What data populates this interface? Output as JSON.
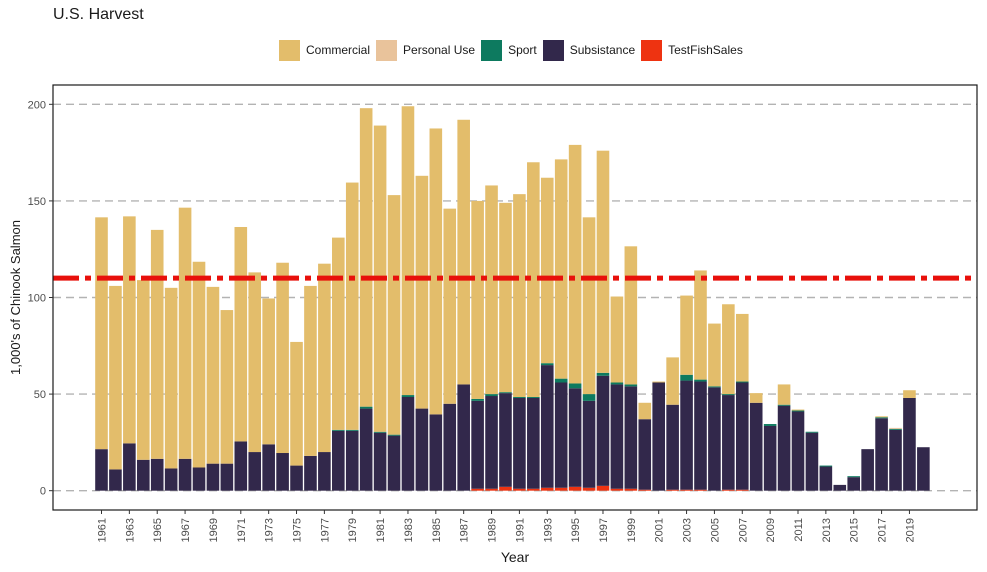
{
  "chart_data": {
    "type": "bar",
    "stacked": true,
    "title": "U.S. Harvest",
    "xlabel": "Year",
    "ylabel": "1,000's of Chinook Salmon",
    "ylim": [
      -10,
      210
    ],
    "y_ticks": [
      0,
      50,
      100,
      150,
      200
    ],
    "grid": "horizontal dashed",
    "legend_position": "top",
    "x_tick_labels": [
      "1961",
      "1963",
      "1965",
      "1967",
      "1969",
      "1971",
      "1973",
      "1975",
      "1977",
      "1979",
      "1981",
      "1983",
      "1985",
      "1987",
      "1989",
      "1991",
      "1993",
      "1995",
      "1997",
      "1999",
      "2001",
      "2003",
      "2005",
      "2007",
      "2009",
      "2011",
      "2013",
      "2015",
      "2017",
      "2019"
    ],
    "reference_line": {
      "value": 110,
      "color": "#e8100b",
      "style": "dash-dot"
    },
    "categories": [
      "1961",
      "1962",
      "1963",
      "1964",
      "1965",
      "1966",
      "1967",
      "1968",
      "1969",
      "1970",
      "1971",
      "1972",
      "1973",
      "1974",
      "1975",
      "1976",
      "1977",
      "1978",
      "1979",
      "1980",
      "1981",
      "1982",
      "1983",
      "1984",
      "1985",
      "1986",
      "1987",
      "1988",
      "1989",
      "1990",
      "1991",
      "1992",
      "1993",
      "1994",
      "1995",
      "1996",
      "1997",
      "1998",
      "1999",
      "2000",
      "2001",
      "2002",
      "2003",
      "2004",
      "2005",
      "2006",
      "2007",
      "2008",
      "2009",
      "2010",
      "2011",
      "2012",
      "2013",
      "2014",
      "2015",
      "2016",
      "2017",
      "2018",
      "2019",
      "2020"
    ],
    "series": [
      {
        "name": "TestFishSales",
        "color": "#ee3311",
        "values": [
          0,
          0,
          0,
          0,
          0,
          0,
          0,
          0,
          0,
          0,
          0,
          0,
          0,
          0,
          0,
          0,
          0,
          0,
          0,
          0,
          0,
          0,
          0,
          0,
          0,
          0,
          0,
          1,
          1,
          2,
          1,
          1,
          1.5,
          1.5,
          2,
          1.5,
          2.5,
          1,
          1,
          0.5,
          0,
          0.5,
          0.5,
          0.5,
          0,
          0.5,
          0.5,
          0,
          0,
          0,
          0,
          0,
          0,
          0,
          0,
          0,
          0,
          0,
          0,
          0
        ]
      },
      {
        "name": "Subsistance",
        "color": "#32284b",
        "values": [
          21.5,
          11,
          24.5,
          16,
          16.5,
          11.5,
          16.5,
          12,
          14,
          14,
          25.5,
          20,
          24,
          19.5,
          13,
          18,
          20,
          31,
          31,
          42.5,
          30,
          28.5,
          48.5,
          42.5,
          39.5,
          45,
          55,
          45.5,
          48,
          48.5,
          47,
          47,
          63.5,
          54.5,
          51,
          45,
          57,
          54,
          53,
          36.5,
          56,
          44,
          56.5,
          56,
          53.5,
          49,
          55.5,
          45.5,
          33.5,
          44,
          41,
          30,
          12.5,
          3,
          7,
          21.5,
          37.5,
          31.5,
          48,
          22.5
        ]
      },
      {
        "name": "Sport",
        "color": "#0d7a5f",
        "values": [
          0,
          0,
          0,
          0,
          0,
          0,
          0,
          0,
          0,
          0,
          0,
          0,
          0,
          0,
          0,
          0,
          0,
          0.5,
          0.5,
          1,
          0.5,
          0.5,
          1,
          0,
          0,
          0,
          0,
          1,
          1,
          0.5,
          0.5,
          0.5,
          1,
          2,
          2.5,
          3.5,
          1.5,
          1,
          1,
          0,
          0,
          0,
          3,
          1,
          0.5,
          0.5,
          0.5,
          0,
          1,
          0.5,
          0.5,
          0.5,
          0.5,
          0,
          0.5,
          0,
          0.5,
          0.5,
          0,
          0
        ]
      },
      {
        "name": "Personal Use",
        "color": "#e9c39b",
        "values": [
          0,
          0,
          0,
          0,
          0,
          0,
          0,
          0,
          0,
          0,
          0,
          0,
          0,
          0,
          0,
          0,
          0,
          0,
          0,
          0,
          0,
          0,
          0,
          0,
          0,
          0,
          0,
          0,
          0,
          0,
          0,
          0,
          0,
          0,
          0,
          0,
          0,
          0,
          0,
          0,
          0,
          0,
          0,
          0,
          0,
          0,
          0,
          0,
          0,
          0,
          0,
          0,
          0,
          0,
          0,
          0,
          0,
          0.5,
          0,
          0
        ]
      },
      {
        "name": "Commercial",
        "color": "#e3bd6b",
        "values": [
          120,
          95,
          117.5,
          93,
          118.5,
          93.5,
          130,
          106.5,
          91.5,
          79.5,
          111,
          93,
          75.5,
          98.5,
          64,
          88,
          97.5,
          99.5,
          128,
          154.5,
          158.5,
          124,
          149.5,
          120.5,
          148,
          101,
          137,
          102.5,
          108,
          98,
          105,
          121.5,
          96,
          113.5,
          123.5,
          91.5,
          115,
          44.5,
          71.5,
          8.5,
          0.5,
          24.5,
          41,
          56.5,
          32.5,
          46.5,
          35,
          5,
          0,
          10.5,
          0.5,
          0,
          0,
          0,
          0,
          0,
          0.5,
          0,
          4,
          0
        ]
      }
    ]
  }
}
